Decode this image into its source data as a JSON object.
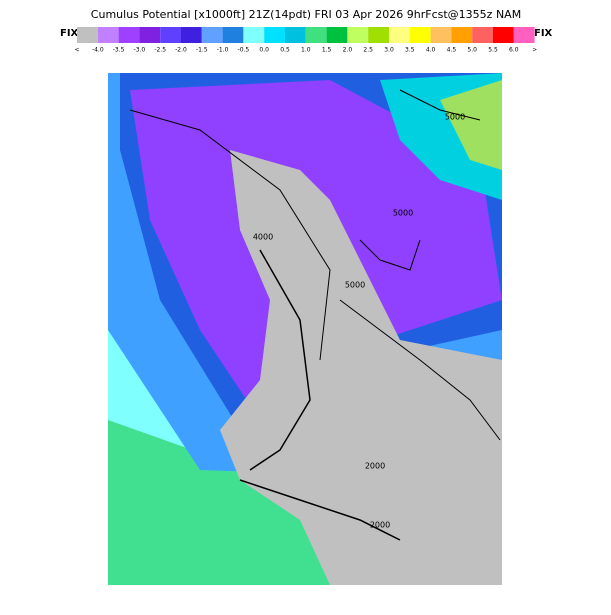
{
  "header": {
    "title": "Cumulus Potential [x1000ft] 21Z(14pdt) FRI 03 Apr 2026 9hrFcst@1355z NAM",
    "fix_left": "FIX",
    "fix_right": "FIX"
  },
  "legend": {
    "labels": [
      "<",
      "-4.0",
      "-3.5",
      "-3.0",
      "-2.5",
      "-2.0",
      "-1.5",
      "-1.0",
      "-0.5",
      "0.0",
      "0.5",
      "1.0",
      "1.5",
      "2.0",
      "2.5",
      "3.0",
      "3.5",
      "4.0",
      "4.5",
      "5.0",
      "5.5",
      "6.0",
      ">"
    ],
    "colors": [
      "#c0c0c0",
      "#c080ff",
      "#a040ff",
      "#8020e0",
      "#6040ff",
      "#4020e0",
      "#60a0ff",
      "#2080e0",
      "#80ffff",
      "#00e0ff",
      "#00c0e0",
      "#40e080",
      "#00c040",
      "#c0ff60",
      "#a0e000",
      "#ffff80",
      "#ffff00",
      "#ffc060",
      "#ffa000",
      "#ff6060",
      "#ff0000",
      "#ff60c0"
    ]
  },
  "map": {
    "contour_labels": [
      "5000",
      "5000",
      "5000",
      "2000",
      "2000",
      "4000"
    ]
  }
}
